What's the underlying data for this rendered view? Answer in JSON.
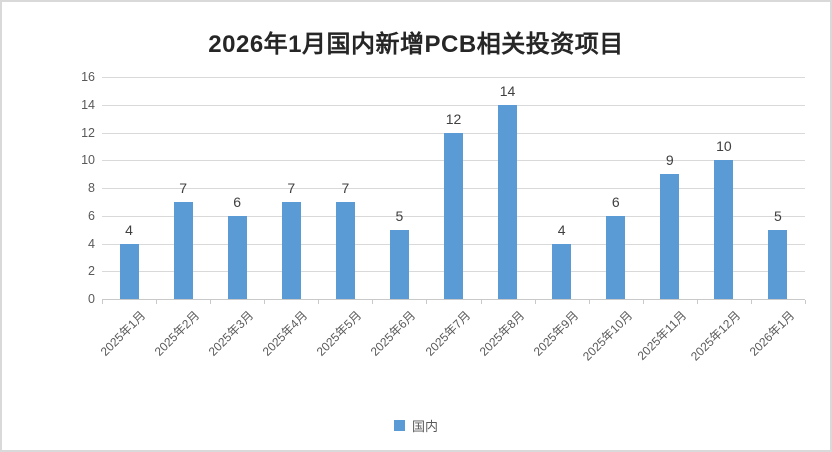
{
  "title": "2026年1月国内新增PCB相关投资项目",
  "colors": {
    "bar": "#5b9bd5",
    "gridline": "#d9d9d9",
    "axis_text": "#595959",
    "data_label_text": "#404040",
    "title_text": "#262626",
    "frame_border": "#d9d9d9"
  },
  "legend": {
    "label": "国内",
    "swatch_icon": "blue-square"
  },
  "chart_data": {
    "type": "bar",
    "title": "2026年1月国内新增PCB相关投资项目",
    "series_name": "国内",
    "categories": [
      "2025年1月",
      "2025年2月",
      "2025年3月",
      "2025年4月",
      "2025年5月",
      "2025年6月",
      "2025年7月",
      "2025年8月",
      "2025年9月",
      "2025年10月",
      "2025年11月",
      "2025年12月",
      "2026年1月"
    ],
    "values": [
      4,
      7,
      6,
      7,
      7,
      5,
      12,
      14,
      4,
      6,
      9,
      10,
      5
    ],
    "xlabel": "",
    "ylabel": "",
    "ylim": [
      0,
      16
    ],
    "ytick_step": 2,
    "yticks": [
      0,
      2,
      4,
      6,
      8,
      10,
      12,
      14,
      16
    ],
    "grid": true,
    "data_labels": true,
    "legend_position": "bottom",
    "bar_color": "#5b9bd5"
  }
}
